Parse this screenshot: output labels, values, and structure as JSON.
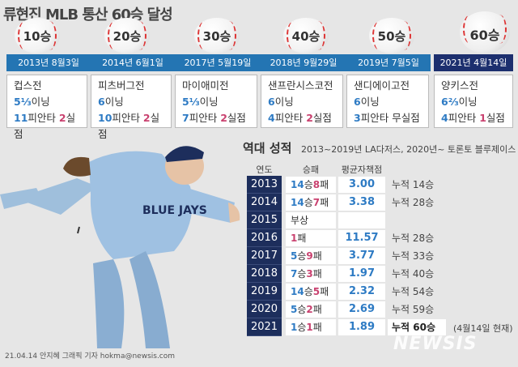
{
  "title": "류현진 MLB 통산 60승 달성",
  "milestones": [
    {
      "label": "10승",
      "date": "2013년 8월3일",
      "opponent": "컵스전",
      "ip_num": "5⅓",
      "ip_unit": "이닝",
      "hits_num": "11",
      "hits_unit": "피안타",
      "er_num": "2",
      "er_unit": "실점"
    },
    {
      "label": "20승",
      "date": "2014년 6월1일",
      "opponent": "피츠버그전",
      "ip_num": "6",
      "ip_unit": "이닝",
      "hits_num": "10",
      "hits_unit": "피안타",
      "er_num": "2",
      "er_unit": "실점"
    },
    {
      "label": "30승",
      "date": "2017년 5월19일",
      "opponent": "마이애미전",
      "ip_num": "5⅓",
      "ip_unit": "이닝",
      "hits_num": "7",
      "hits_unit": "피안타",
      "er_num": "2",
      "er_unit": "실점"
    },
    {
      "label": "40승",
      "date": "2018년 9월29일",
      "opponent": "샌프란시스코전",
      "ip_num": "6",
      "ip_unit": "이닝",
      "hits_num": "4",
      "hits_unit": "피안타",
      "er_num": "2",
      "er_unit": "실점"
    },
    {
      "label": "50승",
      "date": "2019년 7월5일",
      "opponent": "샌디에이고전",
      "ip_num": "6",
      "ip_unit": "이닝",
      "hits_num": "3",
      "hits_unit": "피안타",
      "er_num": "",
      "er_unit": "무실점"
    },
    {
      "label": "60승",
      "date": "2021년 4월14일",
      "opponent": "양키스전",
      "ip_num": "6⅔",
      "ip_unit": "이닝",
      "hits_num": "4",
      "hits_unit": "피안타",
      "er_num": "1",
      "er_unit": "실점"
    }
  ],
  "stats": {
    "title": "역대 성적",
    "subtitle": "2013~2019년 LA다저스, 2020년~ 토론토 블루제이스",
    "headers": {
      "year": "연도",
      "wl": "승패",
      "era": "평균자책점"
    },
    "rows": [
      {
        "year": "2013",
        "w": "14",
        "w_unit": "승",
        "l": "8",
        "l_unit": "패",
        "era": "3.00",
        "cum": "누적 14승"
      },
      {
        "year": "2014",
        "w": "14",
        "w_unit": "승",
        "l": "7",
        "l_unit": "패",
        "era": "3.38",
        "cum": "누적 28승"
      },
      {
        "year": "2015",
        "w": "",
        "w_unit": "부상",
        "l": "",
        "l_unit": "",
        "era": "",
        "cum": ""
      },
      {
        "year": "2016",
        "w": "",
        "w_unit": "",
        "l": "1",
        "l_unit": "패",
        "era": "11.57",
        "cum": "누적 28승"
      },
      {
        "year": "2017",
        "w": "5",
        "w_unit": "승",
        "l": "9",
        "l_unit": "패",
        "era": "3.77",
        "cum": "누적 33승"
      },
      {
        "year": "2018",
        "w": "7",
        "w_unit": "승",
        "l": "3",
        "l_unit": "패",
        "era": "1.97",
        "cum": "누적 40승"
      },
      {
        "year": "2019",
        "w": "14",
        "w_unit": "승",
        "l": "5",
        "l_unit": "패",
        "era": "2.32",
        "cum": "누적 54승"
      },
      {
        "year": "2020",
        "w": "5",
        "w_unit": "승",
        "l": "2",
        "l_unit": "패",
        "era": "2.69",
        "cum": "누적 59승"
      },
      {
        "year": "2021",
        "w": "1",
        "w_unit": "승",
        "l": "1",
        "l_unit": "패",
        "era": "1.89",
        "cum": "누적 60승"
      }
    ],
    "note": "(4월14일 현재)"
  },
  "credit": "21.04.14 안지혜 그래픽 기자 hokma@newsis.com",
  "watermark": "NEWSIS",
  "jersey_text": "BLUE JAYS",
  "colors": {
    "band": "#2475b3",
    "band_last": "#1c2f6e",
    "year_col": "#1d2e5c",
    "accent_blue": "#2e7bc4",
    "accent_pink": "#c9416f"
  }
}
